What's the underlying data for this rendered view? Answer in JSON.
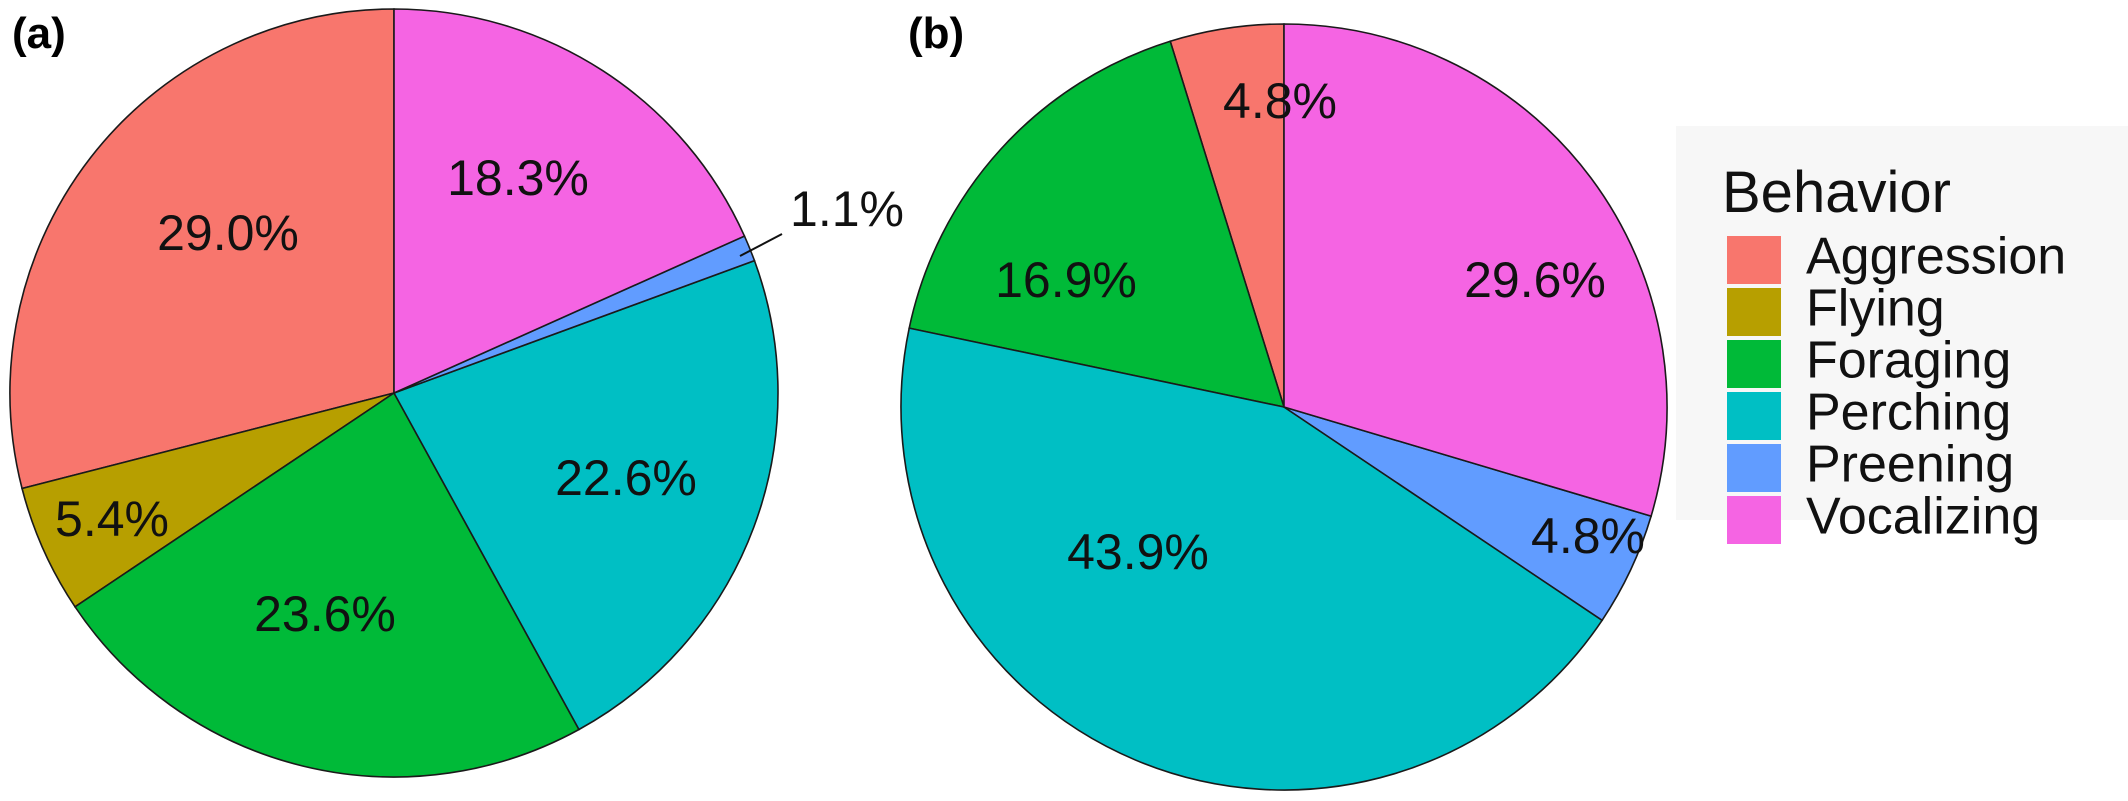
{
  "chart_data": [
    {
      "type": "pie",
      "panel_label": "(a)",
      "slices": [
        {
          "category": "Aggression",
          "value": 29.0,
          "label": "29.0%"
        },
        {
          "category": "Flying",
          "value": 5.4,
          "label": "5.4%"
        },
        {
          "category": "Foraging",
          "value": 23.6,
          "label": "23.6%"
        },
        {
          "category": "Perching",
          "value": 22.6,
          "label": "22.6%"
        },
        {
          "category": "Preening",
          "value": 1.1,
          "label": "1.1%"
        },
        {
          "category": "Vocalizing",
          "value": 18.3,
          "label": "18.3%"
        }
      ]
    },
    {
      "type": "pie",
      "panel_label": "(b)",
      "slices": [
        {
          "category": "Aggression",
          "value": 4.8,
          "label": "4.8%"
        },
        {
          "category": "Flying",
          "value": 0.0,
          "label": ""
        },
        {
          "category": "Foraging",
          "value": 16.9,
          "label": "16.9%"
        },
        {
          "category": "Perching",
          "value": 43.9,
          "label": "43.9%"
        },
        {
          "category": "Preening",
          "value": 4.8,
          "label": "4.8%"
        },
        {
          "category": "Vocalizing",
          "value": 29.6,
          "label": "29.6%"
        }
      ]
    }
  ],
  "legend": {
    "title": "Behavior",
    "placement": "right",
    "items": [
      {
        "label": "Aggression",
        "color": "#F8766D"
      },
      {
        "label": "Flying",
        "color": "#B79F00"
      },
      {
        "label": "Foraging",
        "color": "#00BA38"
      },
      {
        "label": "Perching",
        "color": "#00BFC4"
      },
      {
        "label": "Preening",
        "color": "#619CFF"
      },
      {
        "label": "Vocalizing",
        "color": "#F564E3"
      }
    ]
  }
}
